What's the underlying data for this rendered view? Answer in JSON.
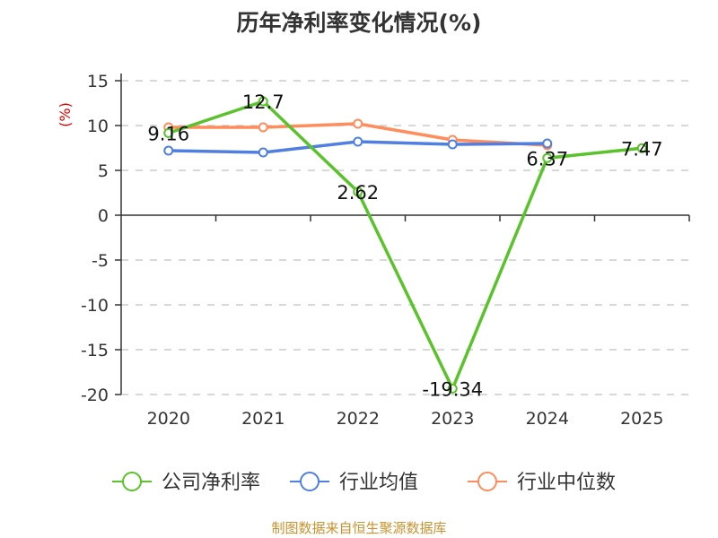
{
  "title": "历年净利率变化情况(%)",
  "source": "制图数据来自恒生聚源数据库",
  "y_unit_label": "(%)",
  "colors": {
    "company": "#5ac22a",
    "industry_avg": "#4f7fe0",
    "industry_median": "#ff8c5a",
    "unit_label": "#e00000",
    "source": "#c8922f",
    "axis": "#333333",
    "grid": "#cccccc"
  },
  "legend": [
    {
      "label": "公司净利率",
      "color": "#5ac22a"
    },
    {
      "label": "行业均值",
      "color": "#4f7fe0"
    },
    {
      "label": "行业中位数",
      "color": "#ff8c5a"
    }
  ],
  "chart_data": {
    "type": "line",
    "title": "历年净利率变化情况(%)",
    "xlabel": "",
    "ylabel": "(%)",
    "categories": [
      "2020",
      "2021",
      "2022",
      "2023",
      "2024",
      "2025"
    ],
    "ylim": [
      -20,
      15
    ],
    "yticks": [
      15,
      10,
      5,
      0,
      -5,
      -10,
      -15,
      -20
    ],
    "grid": true,
    "legend_position": "bottom",
    "series": [
      {
        "name": "公司净利率",
        "values": [
          9.16,
          12.7,
          2.62,
          -19.34,
          6.37,
          7.47
        ],
        "labels": [
          "9.16",
          "12.7",
          "2.62",
          "-19.34",
          "6.37",
          "7.47"
        ]
      },
      {
        "name": "行业均值",
        "values": [
          7.2,
          7.0,
          8.2,
          7.9,
          8.0,
          null
        ]
      },
      {
        "name": "行业中位数",
        "values": [
          9.8,
          9.8,
          10.2,
          8.4,
          7.8,
          null
        ]
      }
    ]
  }
}
